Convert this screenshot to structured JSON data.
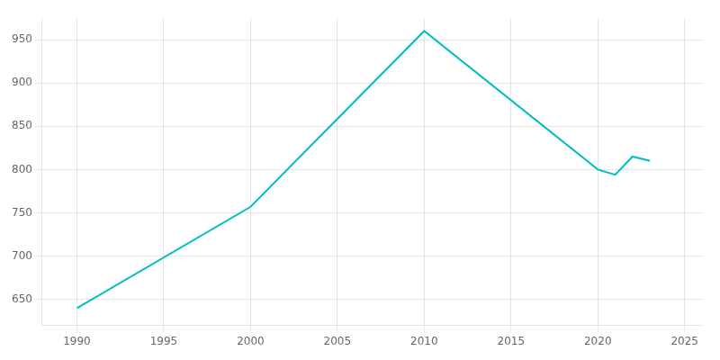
{
  "chart_data": {
    "type": "line",
    "x": [
      1990,
      2000,
      2010,
      2020,
      2021,
      2022,
      2023
    ],
    "values": [
      640,
      757,
      960,
      800,
      794,
      815,
      810
    ],
    "color": "#00BFBF",
    "xlim": [
      1988,
      2026
    ],
    "ylim": [
      620,
      975
    ],
    "xticks": [
      1990,
      1995,
      2000,
      2005,
      2010,
      2015,
      2020,
      2025
    ],
    "yticks": [
      650,
      700,
      750,
      800,
      850,
      900,
      950
    ],
    "grid": true
  }
}
